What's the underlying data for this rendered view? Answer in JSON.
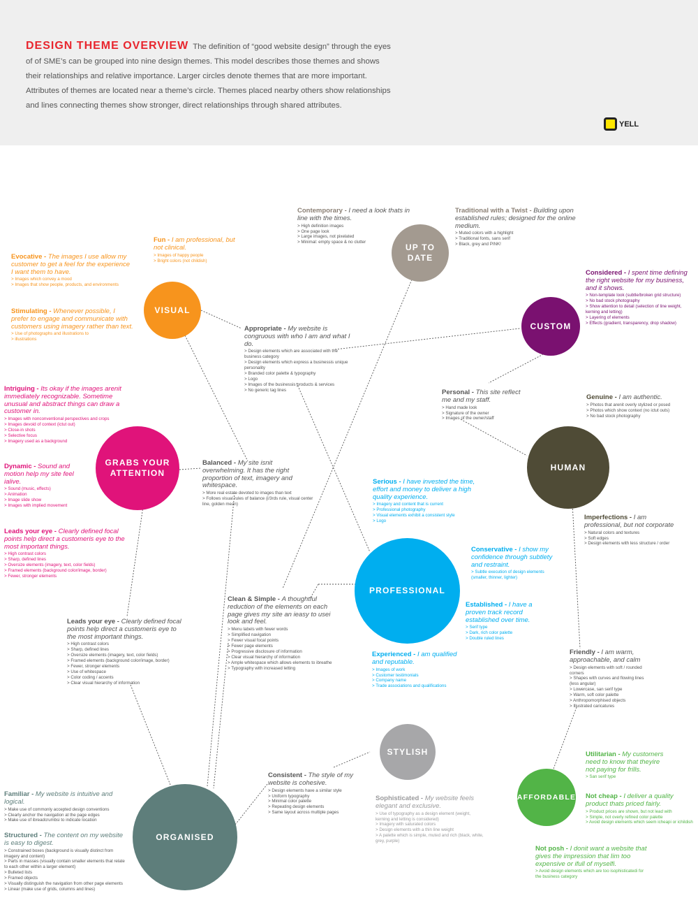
{
  "header": {
    "title": "DESIGN THEME OVERVIEW",
    "description": "The definition of “good website design” through the eyes of of SME’s can be grouped into nine design themes. This model describes those themes and shows their relationships and relative importance. Larger circles denote themes that are more important. Attributes of themes are located near a theme’s circle. Themes placed nearby others show relationships and lines connecting themes show stronger, direct relationships through shared attributes.",
    "logo_text": "YELL"
  },
  "colors": {
    "visual": "#f7941d",
    "grabs": "#e0137a",
    "organised": "#5e7e7b",
    "uptodate": "#a39a90",
    "custom": "#7a1170",
    "human": "#4f4b36",
    "professional": "#00aeef",
    "stylish": "#a7a7a9",
    "affordable": "#52b447",
    "neutral": "#555555",
    "brand_yellow": "#ffe600",
    "title_red": "#e8262e"
  },
  "themes": {
    "visual": "VISUAL",
    "grabs": "GRABS YOUR ATTENTION",
    "organised": "ORGANISED",
    "uptodate": "UP TO DATE",
    "custom": "CUSTOM",
    "human": "HUMAN",
    "professional": "PROFESSIONAL",
    "stylish": "STYLISH",
    "affordable": "AFFORDABLE"
  },
  "attributes": {
    "evocative": {
      "name": "Evocative - ",
      "desc": "The images I use allow my customer to get a feel for the experience I want them to have.",
      "items": [
        "> Images which convey a mood",
        "> Images that show people, products, and environments"
      ]
    },
    "stimulating": {
      "name": "Stimulating - ",
      "desc": "Whenever possible, I prefer to engage and communicate with customers using imagery rather than text.",
      "items": [
        "> Use of photographs and illustrations to",
        "> illustrations"
      ]
    },
    "fun": {
      "name": "Fun - ",
      "desc": "I am professional, but not clinical.",
      "items": [
        "> Images of happy people",
        "> Bright colors (not childish)"
      ]
    },
    "contemporary": {
      "name": "Contemporary - ",
      "desc": "I need a look thats in line with the times.",
      "items": [
        "> High definition images",
        "> One page look",
        "> Large images, not pixelated",
        "> Minimal: empty space & no clutter"
      ]
    },
    "traditional": {
      "name": "Traditional with a Twist - ",
      "desc": "Building upon established rules; designed for the online medium.",
      "items": [
        "> Muted colors with a highlight",
        "> Traditional fonts, sans serif",
        "> Black, grey and PINK!"
      ]
    },
    "considered": {
      "name": "Considered - ",
      "desc": "I spent time defining the right website for my business, and it shows.",
      "items": [
        "> Non-template look (subtle/broken grid structure)",
        "> No bad stock photography",
        "> Show attention to detail (selection of line weight, kerning and letting)",
        "> Layering of elements",
        "> Effects (gradient, transparency, drop shadow)"
      ]
    },
    "appropriate": {
      "name": "Appropriate - ",
      "desc": "My website is congruous with who I am and what I do.",
      "items": [
        "> Design elements which are associated with the business category",
        "> Design elements which express a businessis unique personality",
        "> Branded color palette & typography",
        "> Logo",
        "> Images of the businessis products & services",
        "> No generic tag lines"
      ]
    },
    "personal": {
      "name": "Personal - ",
      "desc": "This site reflect me and my staff.",
      "items": [
        "> Hand made look",
        "> Signature of the owner",
        "> Images of the owner/staff"
      ]
    },
    "genuine": {
      "name": "Genuine - ",
      "desc": "I am authentic.",
      "items": [
        "> Photos that arenit overly stylized or posed",
        "> Photos which show context (no ictut outs)",
        "> No bad stock photography"
      ]
    },
    "intriguing": {
      "name": "Intriguing - ",
      "desc": "Its okay if the images arenit immediately recognizable. Sometime unusual and abstract things can draw a customer in.",
      "items": [
        "> Images with nonconventional perspectives and crops",
        "> Images devoid of context (ictut out)",
        "> Close-in shots",
        "> Selective focus",
        "> Imagery used as a background"
      ]
    },
    "dynamic": {
      "name": "Dynamic - ",
      "desc": "Sound and motion help my site feel ialive.",
      "items": [
        "> Sound (music, effects)",
        "> Animation",
        "> Image slide show",
        "> Images with implied movement"
      ]
    },
    "balanced": {
      "name": "Balanced - ",
      "desc": "My site isnit overwhelming. It has the right proportion of text, imagery and whitespace.",
      "items": [
        "> More real estate devoted to images than text",
        "> Follows visual rules of balance (i/3rds rule, visual center line, golden mean)"
      ]
    },
    "serious": {
      "name": "Serious - ",
      "desc": "I have invested the time, effort and money to deliver a high quality experience.",
      "items": [
        "> Imagery and content that is current",
        "> Professional photography",
        "> Visual elements exhibit a consistent style",
        "> Logo"
      ]
    },
    "imperfections": {
      "name": "Imperfections - ",
      "desc": "I am professional, but not corporate",
      "items": [
        "> Natural colors and textures",
        "> Soft edges",
        "> Design elements with less structure / order"
      ]
    },
    "leads_pink": {
      "name": "Leads your eye - ",
      "desc": "Clearly defined focal points help direct a customeris eye to the most important things.",
      "items": [
        "> High contrast colors",
        "> Sharp, defined lines",
        "> Oversize elements (imagery, text, color fields)",
        "> Framed elements (background color/image, border)",
        "> Fewer, stronger elements"
      ]
    },
    "conservative": {
      "name": "Conservative - ",
      "desc": "I show my confidence through subtlety and restraint.",
      "items": [
        "> Subtle execution of design elements (smaller, thinner, lighter)"
      ]
    },
    "clean": {
      "name": "Clean & Simple - ",
      "desc": "A thoughtful reduction of the elements on each page gives my site an ieasy to usei look and feel.",
      "items": [
        "> Menu labels with fewer words",
        "> Simplified navigation",
        "> Fewer visual focal points",
        "> Fewer page elements",
        "> Progressive disclosure of information",
        "> Clear visual hierarchy of information",
        "> Ample whitespace which allows elements to ibreathe",
        "> Typography with increased letting"
      ]
    },
    "established": {
      "name": "Established - ",
      "desc": "I have a proven track record established over time.",
      "items": [
        "> Serif type",
        "> Dark, rich color palette",
        "> Double ruled lines"
      ]
    },
    "leads_dark": {
      "name": "Leads your eye - ",
      "desc": "Clearly defined focal points help direct a customeris eye to the most important things.",
      "items": [
        "> High contrast colors",
        "> Sharp, defined lines",
        "> Oversize elements (imagery, text, color fields)",
        "> Framed elements (background color/image, border)",
        "> Fewer, stronger elements",
        "> Use of whitespace",
        "> Color coding / accents",
        "> Clear visual hierarchy of information"
      ]
    },
    "experienced": {
      "name": "Experienced - ",
      "desc": "I am qualified and reputable.",
      "items": [
        "> Images of work",
        "> Customer testimonials",
        "> Company name",
        "> Trade associations and qualifications"
      ]
    },
    "friendly": {
      "name": "Friendly - ",
      "desc": "I am warm, approachable, and calm",
      "items": [
        "> Design elements with soft / rounded corners",
        "> Shapes with curves and flowing lines (less angular)",
        "> Lowercase, san serif type",
        "> Warm, soft color palette",
        "> Anthropomorphised objects",
        "> Illustrated caricatures"
      ]
    },
    "utilitarian": {
      "name": "Utilitarian - ",
      "desc": "My customers need to know that theyire not paying for frills.",
      "items": [
        "> San serif type"
      ]
    },
    "consistent": {
      "name": "Consistent - ",
      "desc": "The style of my website is cohesive.",
      "items": [
        "> Design elements have a similar style",
        "> Uniform typography",
        "> Minimal color palette",
        "> Repeating design elements",
        "> Same layout across multiple pages"
      ]
    },
    "sophisticated": {
      "name": "Sophisticated - ",
      "desc": "My website feels elegant and exclusive.",
      "items": [
        "> Use of typography as a design element (weight, kerning and letting is considered)",
        "> Imagery with saturated colors",
        "> Design elements with a thin line weight",
        "> A palette which is simple, muted and rich (black, white, grey, purple)"
      ]
    },
    "notcheap": {
      "name": "Not cheap - ",
      "desc": "I deliver a quality product thats priced fairly.",
      "items": [
        "> Product prices are shown, but not lead with",
        "> Simple, not overly refined color palette",
        "> Avoid design elements which seem icheapi or ichildish"
      ]
    },
    "familiar": {
      "name": "Familiar - ",
      "desc": "My website is intuitive and logical.",
      "items": [
        "> Make use of commonly accepted design conventions",
        "> Clearly anchor the navigation at the page edges",
        "> Make use of ibreadcrumbsi to indicate location"
      ]
    },
    "structured": {
      "name": "Structured - ",
      "desc": "The content on my website is easy to digest.",
      "items": [
        "> Constrained boxes (background is visually distinct from imagery and content)",
        "> Parts in masses (visually contain smaller elements that relate to each other within a larger element)",
        "> Bulleted lists",
        "> Framed objects",
        "> Visually distinguish the navigation from other page elements",
        "> Linear (make use of grids, columns and lines)"
      ]
    },
    "notposh": {
      "name": "Not posh - ",
      "desc": "I donit want a website that gives the impression that Iim too expensive or ifull of myselfi.",
      "items": [
        "> Avoid design elements which are too isophisticatedi for the business category"
      ]
    }
  }
}
